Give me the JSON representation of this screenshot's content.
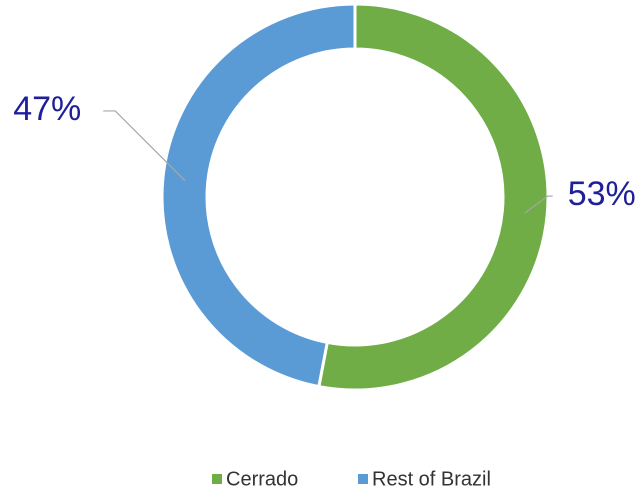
{
  "chart_data": {
    "type": "donut",
    "categories": [
      "Cerrado",
      "Rest of Brazil"
    ],
    "values": [
      53,
      47
    ],
    "value_labels": [
      "53%",
      "47%"
    ],
    "colors": [
      "#70ad47",
      "#5b9bd5"
    ],
    "legend": "bottom"
  }
}
